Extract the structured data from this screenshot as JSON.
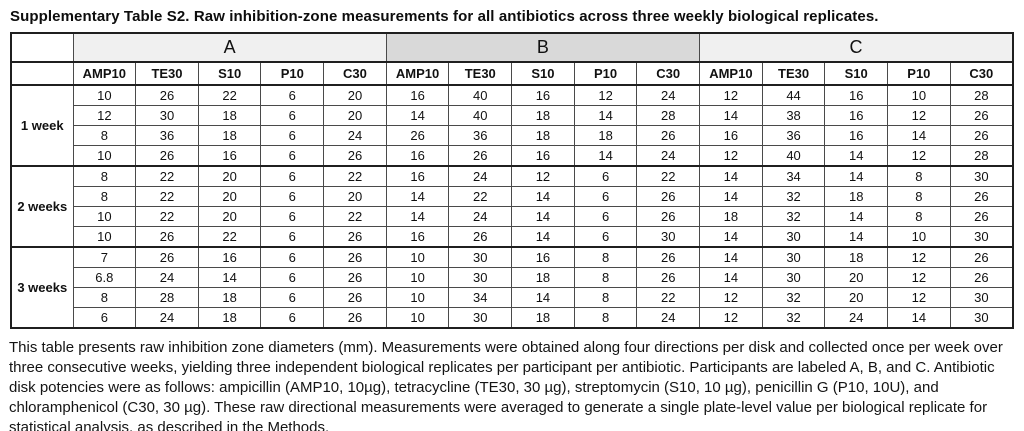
{
  "title": "Supplementary Table S2. Raw inhibition-zone measurements for all antibiotics across three weekly biological replicates.",
  "table": {
    "corner_label": "",
    "groups": [
      {
        "label": "A",
        "shade": "light"
      },
      {
        "label": "B",
        "shade": "dark"
      },
      {
        "label": "C",
        "shade": "light"
      }
    ],
    "antibiotics": [
      "AMP10",
      "TE30",
      "S10",
      "P10",
      "C30"
    ],
    "row_groups": [
      {
        "label": "1 week",
        "rows": [
          [
            "10",
            "26",
            "22",
            "6",
            "20",
            "16",
            "40",
            "16",
            "12",
            "24",
            "12",
            "44",
            "16",
            "10",
            "28"
          ],
          [
            "12",
            "30",
            "18",
            "6",
            "20",
            "14",
            "40",
            "18",
            "14",
            "28",
            "14",
            "38",
            "16",
            "12",
            "26"
          ],
          [
            "8",
            "36",
            "18",
            "6",
            "24",
            "26",
            "36",
            "18",
            "18",
            "26",
            "16",
            "36",
            "16",
            "14",
            "26"
          ],
          [
            "10",
            "26",
            "16",
            "6",
            "26",
            "16",
            "26",
            "16",
            "14",
            "24",
            "12",
            "40",
            "14",
            "12",
            "28"
          ]
        ]
      },
      {
        "label": "2 weeks",
        "rows": [
          [
            "8",
            "22",
            "20",
            "6",
            "22",
            "16",
            "24",
            "12",
            "6",
            "22",
            "14",
            "34",
            "14",
            "8",
            "30"
          ],
          [
            "8",
            "22",
            "20",
            "6",
            "20",
            "14",
            "22",
            "14",
            "6",
            "26",
            "14",
            "32",
            "18",
            "8",
            "26"
          ],
          [
            "10",
            "22",
            "20",
            "6",
            "22",
            "14",
            "24",
            "14",
            "6",
            "26",
            "18",
            "32",
            "14",
            "8",
            "26"
          ],
          [
            "10",
            "26",
            "22",
            "6",
            "26",
            "16",
            "26",
            "14",
            "6",
            "30",
            "14",
            "30",
            "14",
            "10",
            "30"
          ]
        ]
      },
      {
        "label": "3 weeks",
        "rows": [
          [
            "7",
            "26",
            "16",
            "6",
            "26",
            "10",
            "30",
            "16",
            "8",
            "26",
            "14",
            "30",
            "18",
            "12",
            "26"
          ],
          [
            "6.8",
            "24",
            "14",
            "6",
            "26",
            "10",
            "30",
            "18",
            "8",
            "26",
            "14",
            "30",
            "20",
            "12",
            "26"
          ],
          [
            "8",
            "28",
            "18",
            "6",
            "26",
            "10",
            "34",
            "14",
            "8",
            "22",
            "12",
            "32",
            "20",
            "12",
            "30"
          ],
          [
            "6",
            "24",
            "18",
            "6",
            "26",
            "10",
            "30",
            "18",
            "8",
            "24",
            "12",
            "32",
            "24",
            "14",
            "30"
          ]
        ]
      }
    ]
  },
  "caption": "This table presents raw inhibition zone diameters (mm). Measurements were obtained along four directions per disk and collected once per week over three consecutive weeks, yielding three independent biological replicates per participant per antibiotic. Participants are labeled A, B, and C. Antibiotic disk potencies were as follows: ampicillin (AMP10, 10µg), tetracycline (TE30, 30 µg), streptomycin (S10, 10 µg), penicillin G (P10, 10U), and chloramphenicol (C30, 30 µg). These raw directional measurements were averaged to generate a single plate-level value per biological replicate for statistical analysis, as described in the Methods.",
  "colors": {
    "group_header_light": "#f0f0f0",
    "group_header_dark": "#d9d9d9",
    "border_thin": "#4a4a4a",
    "border_thick": "#1f1f1f"
  }
}
